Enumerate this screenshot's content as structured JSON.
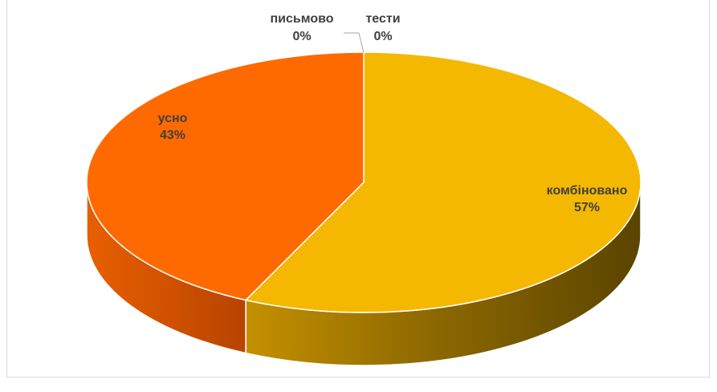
{
  "chart_data": {
    "type": "pie",
    "variant": "3d",
    "title": "",
    "categories": [
      "комбіновано",
      "усно",
      "письмово",
      "тести"
    ],
    "values": [
      57,
      43,
      0,
      0
    ],
    "percent_labels": [
      "57%",
      "43%",
      "0%",
      "0%"
    ],
    "colors": [
      "#f5b800",
      "#ff6a00",
      "#a5a5a5",
      "#4472c4"
    ],
    "legend": "none"
  }
}
